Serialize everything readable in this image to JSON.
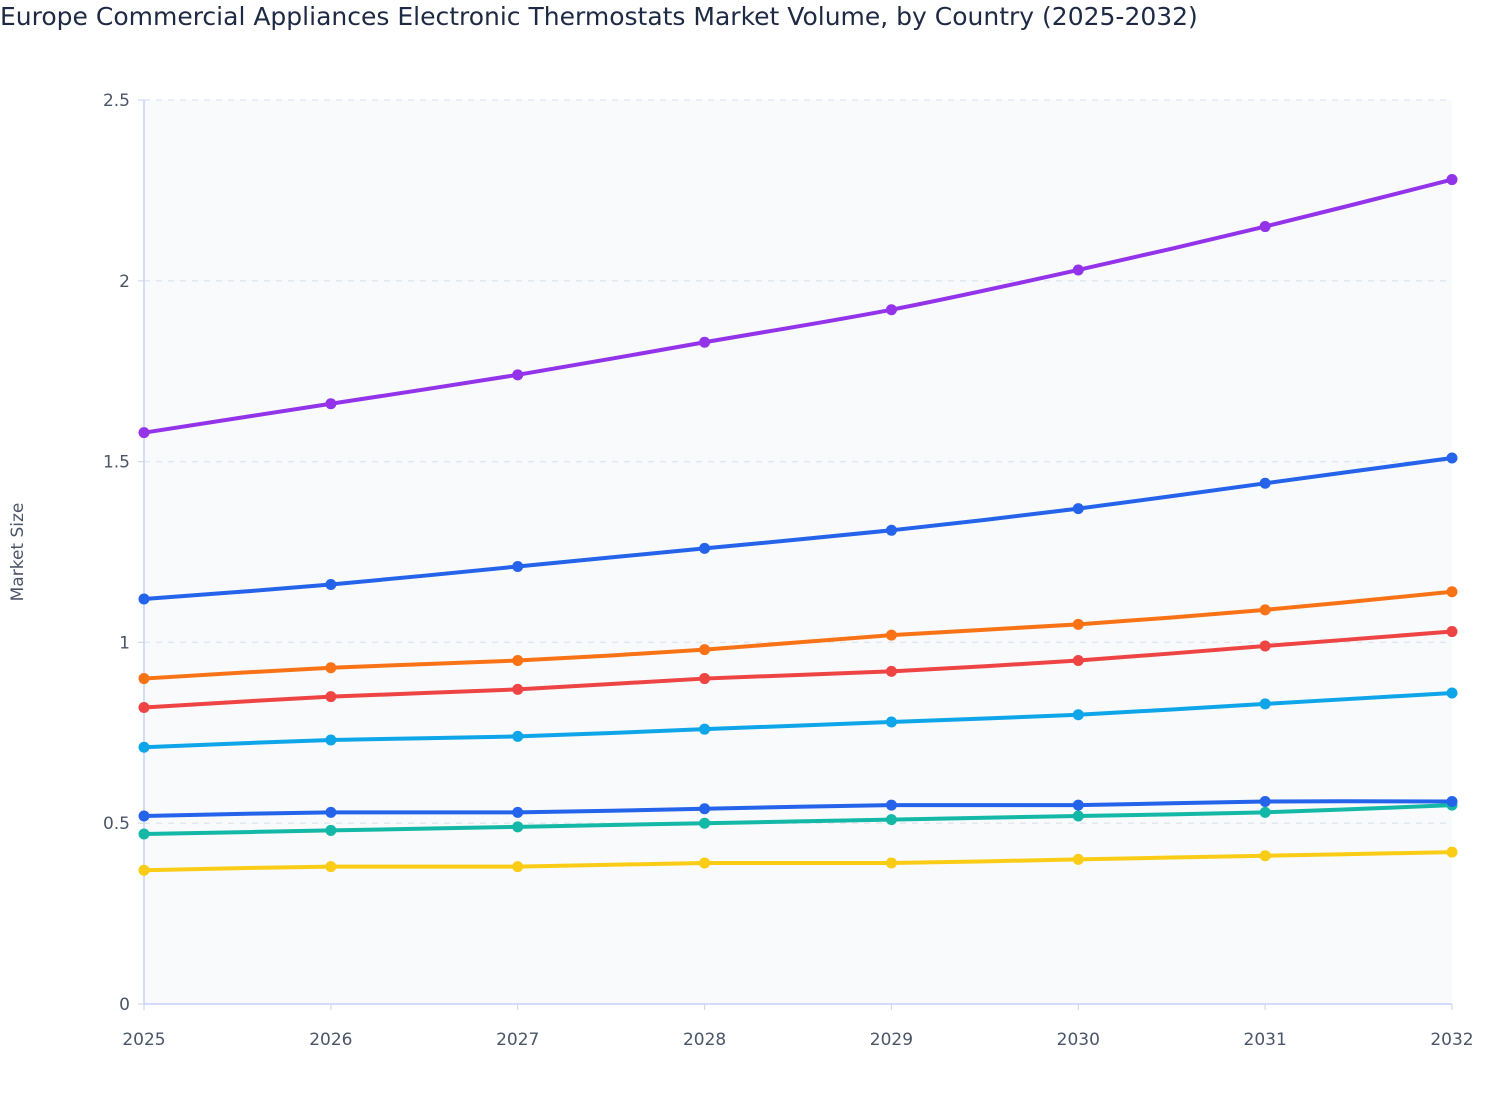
{
  "chart_data": {
    "type": "line",
    "title": "Europe Commercial Appliances Electronic Thermostats Market Volume, by Country (2025-2032)",
    "xlabel": "",
    "ylabel": "Market Size",
    "ylim": [
      0,
      2.5
    ],
    "yticks": [
      "0",
      "0.5",
      "1",
      "1.5",
      "2",
      "2.5"
    ],
    "categories": [
      "2025",
      "2026",
      "2027",
      "2028",
      "2029",
      "2030",
      "2031",
      "2032"
    ],
    "grid": true,
    "legend": "none",
    "series": [
      {
        "color": "#9333ea",
        "values": [
          1.58,
          1.66,
          1.74,
          1.83,
          1.92,
          2.03,
          2.15,
          2.28
        ]
      },
      {
        "color": "#2563eb",
        "values": [
          1.12,
          1.16,
          1.21,
          1.26,
          1.31,
          1.37,
          1.44,
          1.51
        ]
      },
      {
        "color": "#f97316",
        "values": [
          0.9,
          0.93,
          0.95,
          0.98,
          1.02,
          1.05,
          1.09,
          1.14
        ]
      },
      {
        "color": "#ef4444",
        "values": [
          0.82,
          0.85,
          0.87,
          0.9,
          0.92,
          0.95,
          0.99,
          1.03
        ]
      },
      {
        "color": "#0ea5e9",
        "values": [
          0.71,
          0.73,
          0.74,
          0.76,
          0.78,
          0.8,
          0.83,
          0.86
        ]
      },
      {
        "color": "#14b8a6",
        "values": [
          0.47,
          0.48,
          0.49,
          0.5,
          0.51,
          0.52,
          0.53,
          0.55
        ]
      },
      {
        "color": "#2563eb",
        "values": [
          0.52,
          0.53,
          0.53,
          0.54,
          0.55,
          0.55,
          0.56,
          0.56
        ]
      },
      {
        "color": "#facc15",
        "values": [
          0.37,
          0.38,
          0.38,
          0.39,
          0.39,
          0.4,
          0.41,
          0.42
        ]
      }
    ]
  }
}
